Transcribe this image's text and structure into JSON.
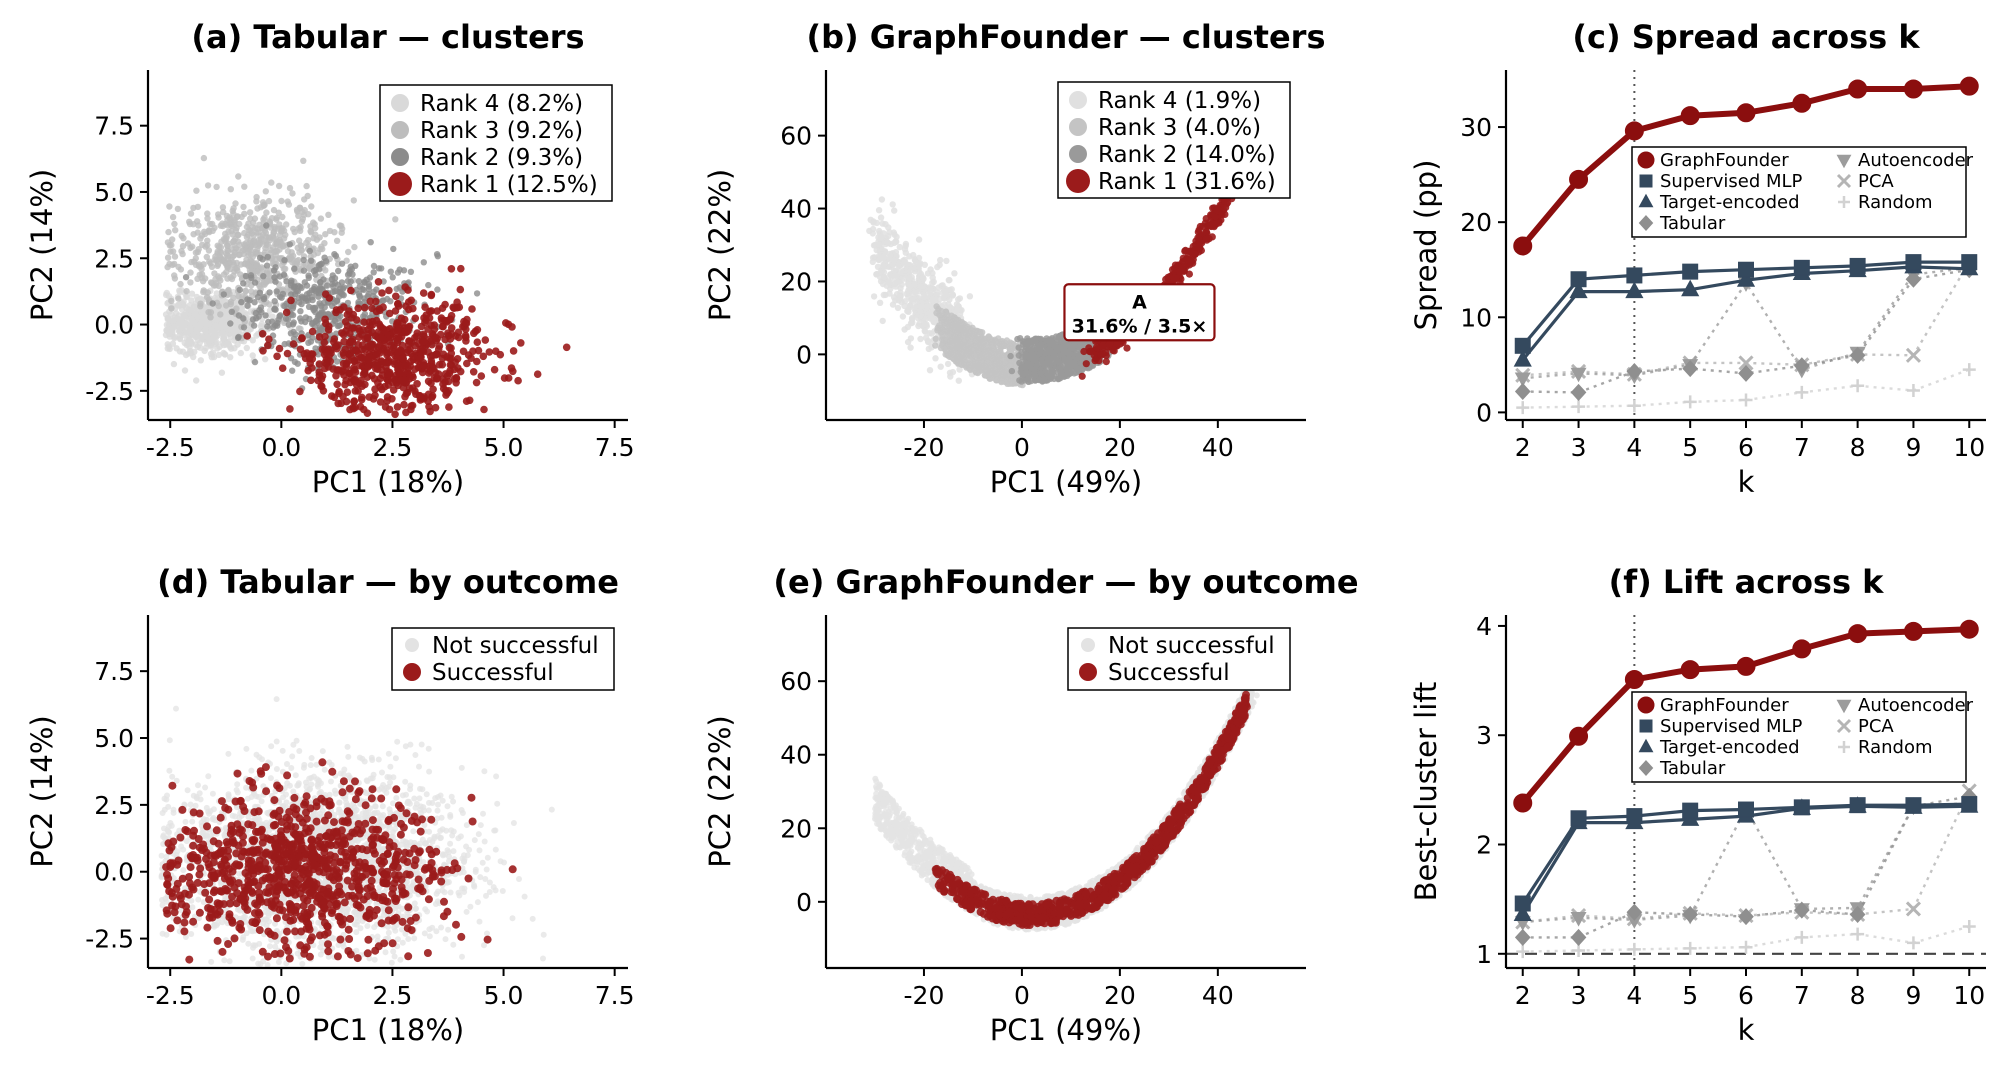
{
  "chart_data": [
    {
      "type": "scatter",
      "title": "(a) Tabular — clusters",
      "xlabel": "PC1 (18%)",
      "ylabel": "PC2 (14%)",
      "xlim": [
        -3.0,
        7.8
      ],
      "ylim": [
        -3.6,
        9.6
      ],
      "xticks": [
        "-2.5",
        "0.0",
        "2.5",
        "5.0",
        "7.5"
      ],
      "yticks": [
        "-2.5",
        "0.0",
        "2.5",
        "5.0",
        "7.5"
      ],
      "legend_position": "top-right",
      "series": [
        {
          "name": "Rank 4 (8.2%)",
          "color": "#d9d9d9",
          "center": [
            -1.6,
            0.1
          ],
          "spread": [
            0.55,
            0.55
          ]
        },
        {
          "name": "Rank 3 (9.2%)",
          "color": "#bdbdbd",
          "center": [
            -0.6,
            2.6
          ],
          "spread": [
            0.9,
            1.1
          ]
        },
        {
          "name": "Rank 2 (9.3%)",
          "color": "#8c8c8c",
          "center": [
            1.0,
            0.6
          ],
          "spread": [
            1.0,
            1.0
          ]
        },
        {
          "name": "Rank 1 (12.5%)",
          "color": "#9b1b1b",
          "center": [
            2.5,
            -1.2
          ],
          "spread": [
            1.1,
            1.0
          ]
        }
      ]
    },
    {
      "type": "scatter",
      "title": "(b) GraphFounder — clusters",
      "xlabel": "PC1 (49%)",
      "ylabel": "PC2 (22%)",
      "xlim": [
        -40,
        58
      ],
      "ylim": [
        -18,
        78
      ],
      "xticks": [
        "-20",
        "0",
        "20",
        "40"
      ],
      "yticks": [
        "0",
        "20",
        "40",
        "60"
      ],
      "legend_position": "top-right",
      "annotation": {
        "title": "A",
        "text": "31.6% / 3.5×",
        "at": [
          24,
          11
        ]
      },
      "series": [
        {
          "name": "Rank 4 (1.9%)",
          "color": "#e0e0e0"
        },
        {
          "name": "Rank 3 (4.0%)",
          "color": "#c4c4c4"
        },
        {
          "name": "Rank 2 (14.0%)",
          "color": "#9a9a9a"
        },
        {
          "name": "Rank 1 (31.6%)",
          "color": "#9b1b1b"
        }
      ]
    },
    {
      "type": "line",
      "title": "(c) Spread across k",
      "xlabel": "k",
      "ylabel": "Spread (pp)",
      "x": [
        2,
        3,
        4,
        5,
        6,
        7,
        8,
        9,
        10
      ],
      "xlim": [
        1.7,
        10.3
      ],
      "ylim": [
        -0.8,
        36
      ],
      "yticks": [
        0,
        10,
        20,
        30
      ],
      "vline": 4,
      "legend_position": "top-center",
      "series": [
        {
          "name": "GraphFounder",
          "color": "#8b0e0e",
          "marker": "circle",
          "values": [
            17.5,
            24.5,
            29.6,
            31.2,
            31.5,
            32.5,
            34.0,
            34.0,
            34.3
          ]
        },
        {
          "name": "Supervised MLP",
          "color": "#34495e",
          "marker": "square",
          "values": [
            7.0,
            14.0,
            14.4,
            14.8,
            15.0,
            15.2,
            15.4,
            15.8,
            15.8
          ]
        },
        {
          "name": "Target-encoded",
          "color": "#34495e",
          "marker": "triangle",
          "values": [
            5.5,
            12.7,
            12.7,
            12.9,
            13.9,
            14.6,
            14.9,
            15.3,
            15.1
          ]
        },
        {
          "name": "Tabular",
          "color": "#8f8f8f",
          "marker": "diamond",
          "values": [
            2.2,
            2.1,
            4.3,
            4.6,
            4.1,
            4.9,
            6.0,
            14.0,
            15.0
          ]
        },
        {
          "name": "Autoencoder",
          "color": "#9c9c9c",
          "marker": "triangle-down",
          "values": [
            3.6,
            4.1,
            3.9,
            5.0,
            13.6,
            4.5,
            6.3,
            14.5,
            15.2
          ]
        },
        {
          "name": "PCA",
          "color": "#b5b5b5",
          "marker": "x",
          "values": [
            3.9,
            4.3,
            4.0,
            5.2,
            5.2,
            5.0,
            6.1,
            6.0,
            15.8
          ]
        },
        {
          "name": "Random",
          "color": "#d2d2d2",
          "marker": "plus",
          "values": [
            0.5,
            0.6,
            0.7,
            1.1,
            1.3,
            2.1,
            2.8,
            2.3,
            4.5
          ]
        }
      ]
    },
    {
      "type": "scatter",
      "title": "(d) Tabular — by outcome",
      "xlabel": "PC1 (18%)",
      "ylabel": "PC2 (14%)",
      "xlim": [
        -3.0,
        7.8
      ],
      "ylim": [
        -3.6,
        9.6
      ],
      "xticks": [
        "-2.5",
        "0.0",
        "2.5",
        "5.0",
        "7.5"
      ],
      "yticks": [
        "-2.5",
        "0.0",
        "2.5",
        "5.0",
        "7.5"
      ],
      "legend_position": "top-right",
      "series": [
        {
          "name": "Not successful",
          "color": "#e3e3e3"
        },
        {
          "name": "Successful",
          "color": "#9b1b1b"
        }
      ]
    },
    {
      "type": "scatter",
      "title": "(e) GraphFounder — by outcome",
      "xlabel": "PC1 (49%)",
      "ylabel": "PC2 (22%)",
      "xlim": [
        -40,
        58
      ],
      "ylim": [
        -18,
        78
      ],
      "xticks": [
        "-20",
        "0",
        "20",
        "40"
      ],
      "yticks": [
        "0",
        "20",
        "40",
        "60"
      ],
      "legend_position": "top-right",
      "series": [
        {
          "name": "Not successful",
          "color": "#e3e3e3"
        },
        {
          "name": "Successful",
          "color": "#9b1b1b"
        }
      ]
    },
    {
      "type": "line",
      "title": "(f) Lift across k",
      "xlabel": "k",
      "ylabel": "Best-cluster lift",
      "x": [
        2,
        3,
        4,
        5,
        6,
        7,
        8,
        9,
        10
      ],
      "xlim": [
        1.7,
        10.3
      ],
      "ylim": [
        0.87,
        4.1
      ],
      "yticks": [
        1,
        2,
        3,
        4
      ],
      "vline": 4,
      "hline": 1,
      "legend_position": "top-center",
      "series": [
        {
          "name": "GraphFounder",
          "color": "#8b0e0e",
          "marker": "circle",
          "values": [
            2.38,
            2.99,
            3.51,
            3.6,
            3.63,
            3.79,
            3.93,
            3.95,
            3.97
          ]
        },
        {
          "name": "Supervised MLP",
          "color": "#34495e",
          "marker": "square",
          "values": [
            1.46,
            2.24,
            2.26,
            2.31,
            2.32,
            2.34,
            2.36,
            2.36,
            2.37
          ]
        },
        {
          "name": "Target-encoded",
          "color": "#34495e",
          "marker": "triangle",
          "values": [
            1.36,
            2.2,
            2.2,
            2.23,
            2.26,
            2.33,
            2.35,
            2.34,
            2.35
          ]
        },
        {
          "name": "Tabular",
          "color": "#8f8f8f",
          "marker": "diamond",
          "values": [
            1.15,
            1.15,
            1.38,
            1.36,
            1.34,
            1.4,
            1.36,
            2.35,
            2.44
          ]
        },
        {
          "name": "Autoencoder",
          "color": "#9c9c9c",
          "marker": "triangle-down",
          "values": [
            1.29,
            1.33,
            1.31,
            1.35,
            2.33,
            1.41,
            1.42,
            2.35,
            2.38
          ]
        },
        {
          "name": "PCA",
          "color": "#b5b5b5",
          "marker": "x",
          "values": [
            1.29,
            1.35,
            1.32,
            1.37,
            1.35,
            1.38,
            1.36,
            1.41,
            2.49
          ]
        },
        {
          "name": "Random",
          "color": "#d2d2d2",
          "marker": "plus",
          "values": [
            1.02,
            1.03,
            1.04,
            1.05,
            1.06,
            1.15,
            1.18,
            1.1,
            1.25
          ]
        }
      ]
    }
  ]
}
